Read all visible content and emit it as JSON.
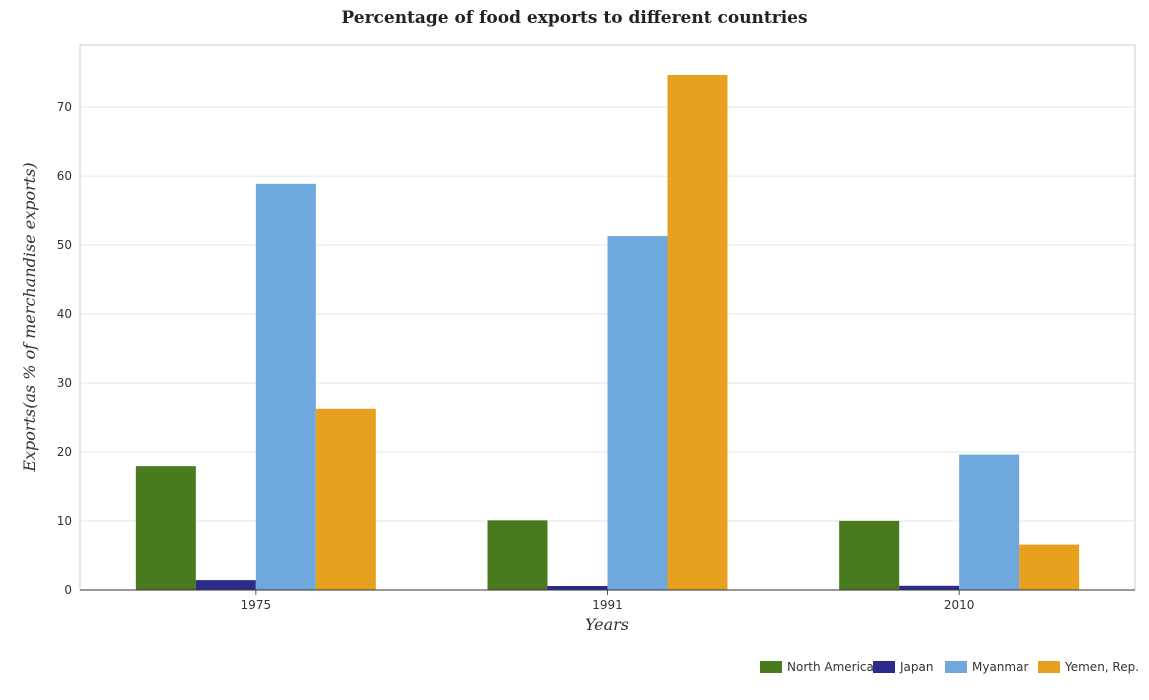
{
  "chart_data": {
    "type": "bar",
    "title": "Percentage of food exports to different countries",
    "xlabel": "Years",
    "ylabel": "Exports(as % of merchandise exports)",
    "categories": [
      "1975",
      "1991",
      "2010"
    ],
    "ylim": [
      0,
      79
    ],
    "yticks": [
      0,
      10,
      20,
      30,
      40,
      50,
      60,
      70
    ],
    "grid": true,
    "legend_position": "bottom-right",
    "series": [
      {
        "name": "North America",
        "color": "#4a7a1e",
        "values": [
          17.95,
          10.1,
          10.02
        ]
      },
      {
        "name": "Japan",
        "color": "#2b2b8c",
        "values": [
          1.43,
          0.58,
          0.61
        ]
      },
      {
        "name": "Myanmar",
        "color": "#6fa8dc",
        "values": [
          58.88,
          51.3,
          19.63
        ]
      },
      {
        "name": "Yemen, Rep.",
        "color": "#e8a020",
        "values": [
          26.27,
          74.65,
          6.58
        ]
      }
    ]
  }
}
